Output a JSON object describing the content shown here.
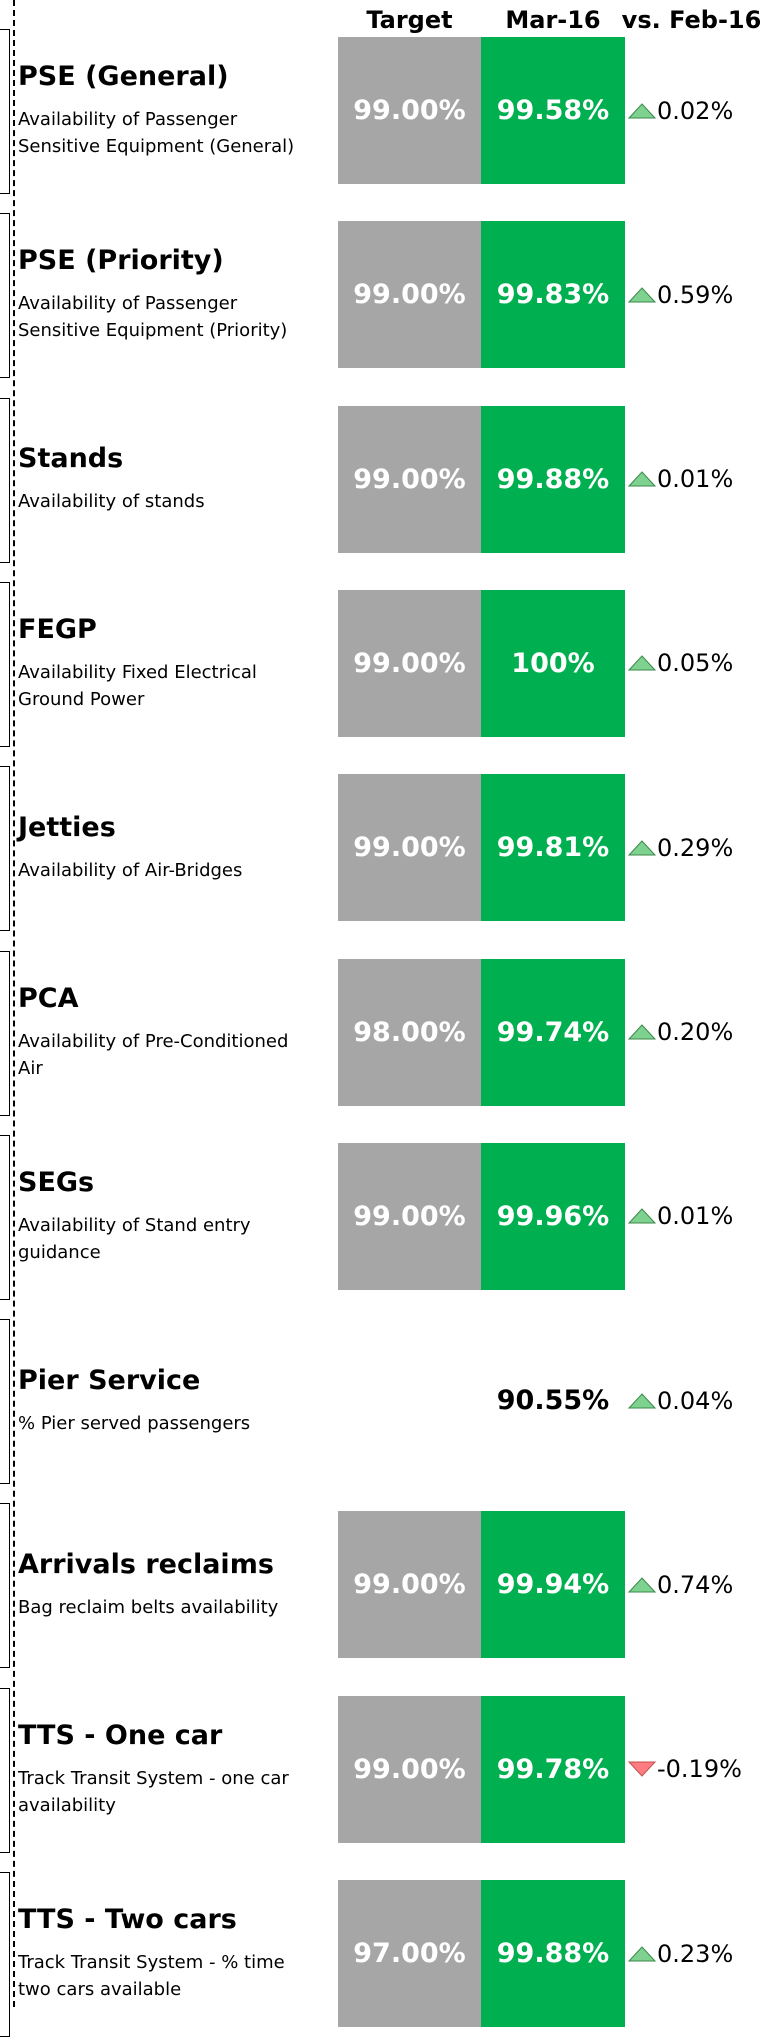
{
  "header": [
    "Target",
    "Mar-16",
    "vs. Feb-16"
  ],
  "rows": [
    {
      "title": "PSE (General)",
      "description": "Availability of Passenger Sensitive Equipment (General)",
      "target": "99.00%",
      "actual": "99.58%",
      "change": "0.02%"
    },
    {
      "title": "PSE (Priority)",
      "description": "Availability of Passenger Sensitive Equipment (Priority)",
      "target": "99.00%",
      "actual": "99.83%",
      "change": "0.59%"
    },
    {
      "title": "Stands",
      "description": "Availability of stands",
      "target": "99.00%",
      "actual": "99.88%",
      "change": "0.01%"
    },
    {
      "title": "FEGP",
      "description": "Availability Fixed Electrical Ground Power",
      "target": "99.00%",
      "actual": "100%",
      "change": "0.05%"
    },
    {
      "title": "Jetties",
      "description": "Availability of Air-Bridges",
      "target": "99.00%",
      "actual": "99.81%",
      "change": "0.29%"
    },
    {
      "title": "PCA",
      "description": "Availability of Pre-Conditioned Air",
      "target": "98.00%",
      "actual": "99.74%",
      "change": "0.20%"
    },
    {
      "title": "SEGs",
      "description": "Availability of Stand entry guidance",
      "target": "99.00%",
      "actual": "99.96%",
      "change": "0.01%"
    },
    {
      "title": "Pier Service",
      "description": "% Pier served passengers",
      "actual": "90.55%",
      "change": "0.04%"
    },
    {
      "title": "Arrivals reclaims",
      "description": "Bag reclaim belts availability",
      "target": "99.00%",
      "actual": "99.94%",
      "change": "0.74%"
    },
    {
      "title": "TTS - One car",
      "description": "Track Transit System - one car availability",
      "target": "99.00%",
      "actual": "99.78%",
      "change": "-0.19%"
    },
    {
      "title": "TTS - Two cars",
      "description": "Track Transit System - % time two cars available",
      "target": "97.00%",
      "actual": "99.88%",
      "change": "0.23%"
    }
  ]
}
